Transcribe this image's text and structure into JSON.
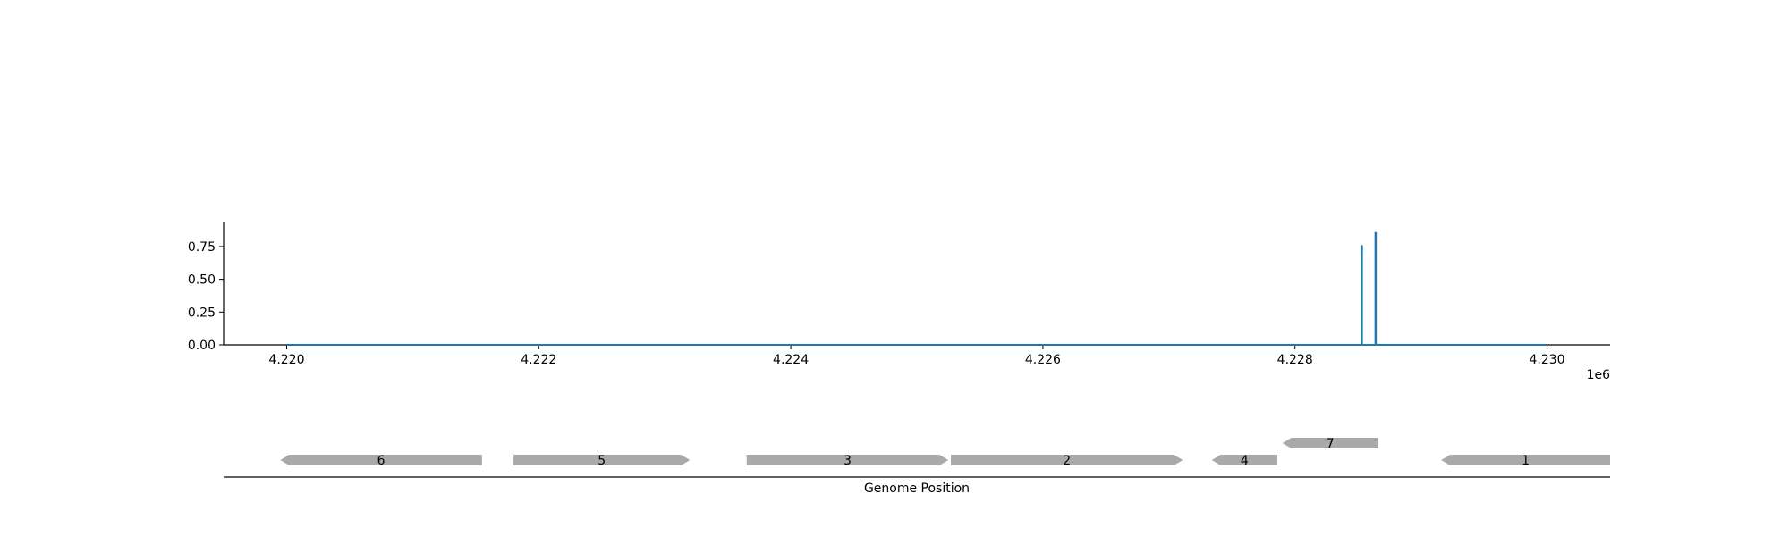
{
  "chart_data": [
    {
      "type": "line",
      "title": "",
      "xlabel": "",
      "ylabel": "",
      "x_offset_label": "1e6",
      "xlim": [
        4219500,
        4230500
      ],
      "ylim": [
        0,
        0.94
      ],
      "x_ticks": [
        4220000,
        4222000,
        4224000,
        4226000,
        4228000,
        4230000
      ],
      "x_tick_labels": [
        "4.220",
        "4.222",
        "4.224",
        "4.226",
        "4.228",
        "4.230"
      ],
      "y_ticks": [
        0,
        0.25,
        0.5,
        0.75
      ],
      "y_tick_labels": [
        "0.00",
        "0.25",
        "0.50",
        "0.75"
      ],
      "baseline": {
        "x_start": 4220000,
        "x_end": 4230000,
        "y": 0
      },
      "series": [
        {
          "color": "#1f77b4",
          "points": [
            {
              "x": 4228530,
              "y": 0.76
            },
            {
              "x": 4228640,
              "y": 0.86
            }
          ]
        }
      ],
      "grid": false
    },
    {
      "type": "gene_map",
      "xlabel": "Genome Position",
      "xlim": [
        4219500,
        4230500
      ],
      "gene_color": "#a9a9a9",
      "genes": [
        {
          "label": "6",
          "start": 4219950,
          "end": 4221550,
          "strand": "-",
          "track": 0
        },
        {
          "label": "5",
          "start": 4221800,
          "end": 4223200,
          "strand": "+",
          "track": 0
        },
        {
          "label": "3",
          "start": 4223650,
          "end": 4225250,
          "strand": "+",
          "track": 0
        },
        {
          "label": "2",
          "start": 4225270,
          "end": 4227110,
          "strand": "+",
          "track": 0
        },
        {
          "label": "4",
          "start": 4227340,
          "end": 4227860,
          "strand": "-",
          "track": 0
        },
        {
          "label": "7",
          "start": 4227900,
          "end": 4228660,
          "strand": "-",
          "track": 1
        },
        {
          "label": "1",
          "start": 4229160,
          "end": 4230500,
          "strand": "-",
          "track": 0
        }
      ]
    }
  ]
}
